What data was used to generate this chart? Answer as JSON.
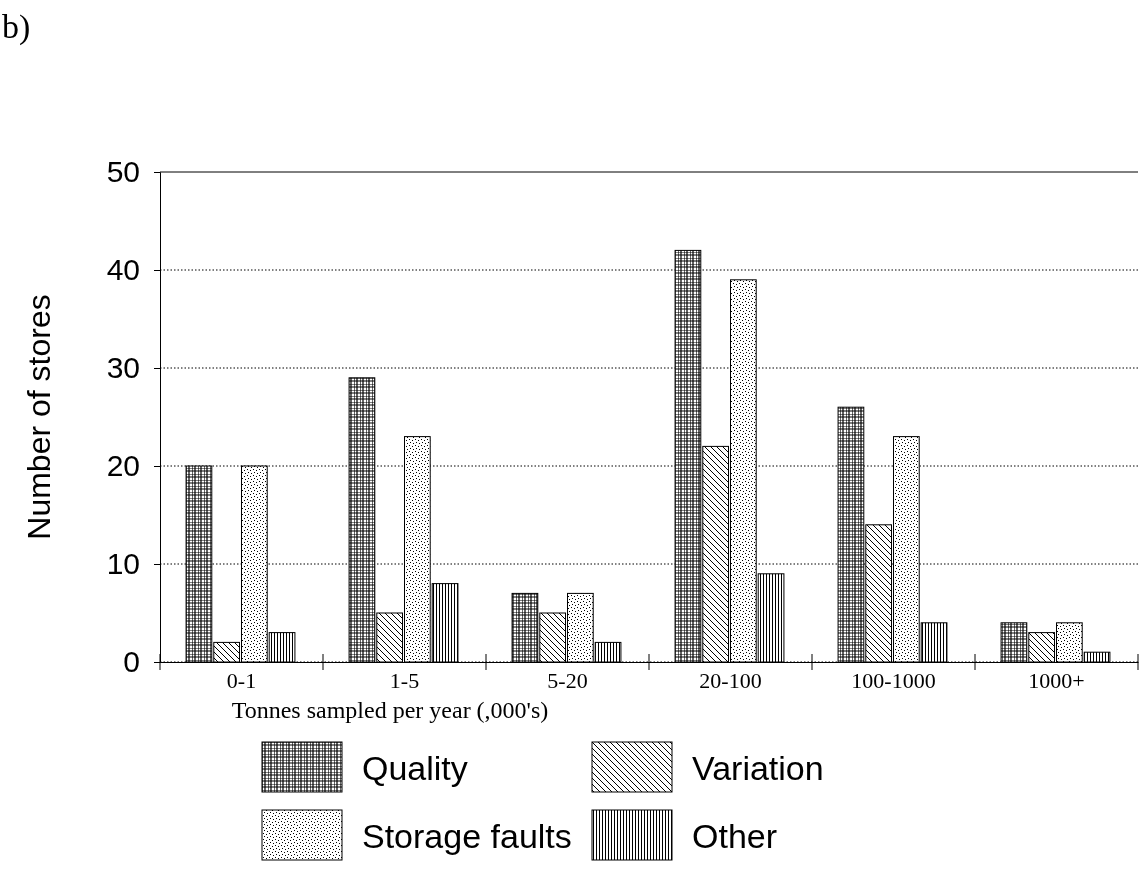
{
  "chart_data": {
    "type": "bar",
    "xlabel": "Tonnes sampled per year (,000's)",
    "ylabel": "Number of stores",
    "annotations": [
      "b)"
    ],
    "categories": [
      "0-1",
      "1-5",
      "5-20",
      "20-100",
      "100-1000",
      "1000+"
    ],
    "series": [
      {
        "name": "Quality",
        "color": "#000000",
        "values": [
          20,
          29,
          7,
          42,
          26,
          4
        ]
      },
      {
        "name": "Variation",
        "color": "#000000",
        "values": [
          2,
          5,
          5,
          22,
          14,
          3
        ]
      },
      {
        "name": "Storage faults",
        "color": "#000000",
        "values": [
          20,
          23,
          7,
          39,
          23,
          4
        ]
      },
      {
        "name": "Other",
        "color": "#000000",
        "values": [
          3,
          8,
          2,
          9,
          4,
          1
        ]
      }
    ],
    "ylim": [
      0,
      50
    ],
    "yticks": [
      0,
      10,
      20,
      30,
      40,
      50
    ],
    "grid": "y",
    "legend": "bottom"
  }
}
